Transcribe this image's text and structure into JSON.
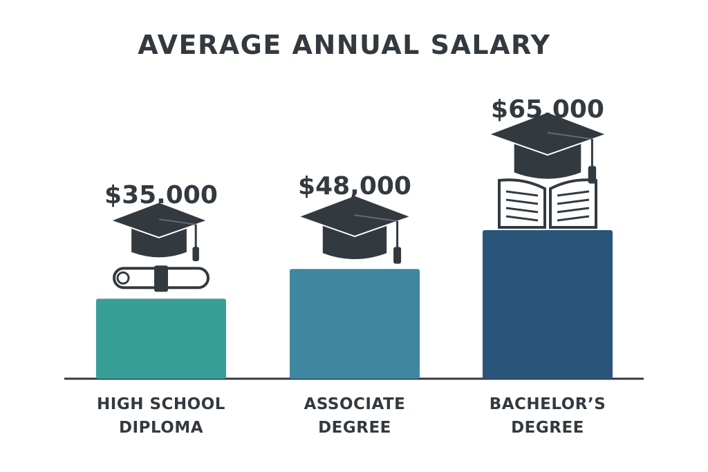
{
  "chart_data": {
    "type": "bar",
    "title": "AVERAGE ANNUAL SALARY",
    "categories": [
      "HIGH SCHOOL DIPLOMA",
      "ASSOCIATE DEGREE",
      "BACHELOR’S DEGREE"
    ],
    "values": [
      35000,
      48000,
      65000
    ],
    "value_labels": [
      "$35.000",
      "$48,000",
      "$65,000"
    ],
    "colors": [
      "#3a9e98",
      "#3f87a0",
      "#2b547a"
    ]
  }
}
